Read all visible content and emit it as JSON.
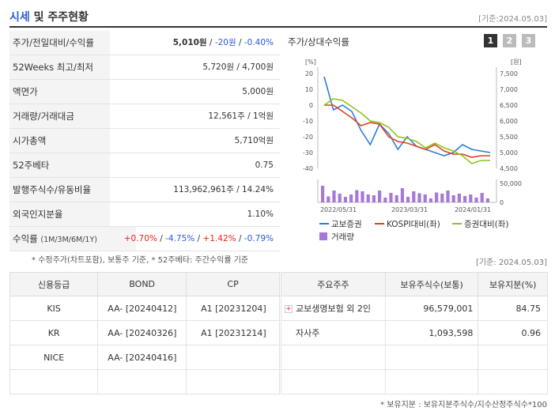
{
  "header": {
    "title_blue": "시세",
    "title_rest": " 및 주주현황",
    "date": "[기준:2024.05.03]"
  },
  "info_rows": [
    {
      "key": "주가/전일대비/수익률",
      "price": "5,010원",
      "change": "-20원",
      "rate": "-0.40%"
    },
    {
      "key": "52Weeks 최고/최저",
      "value": "5,720원 / 4,700원"
    },
    {
      "key": "액면가",
      "value": "5,000원"
    },
    {
      "key": "거래량/거래대금",
      "value": "12,561주 / 1억원"
    },
    {
      "key": "시가총액",
      "value": "5,710억원"
    },
    {
      "key": "52주베타",
      "value": "0.75"
    },
    {
      "key": "발행주식수/유동비율",
      "value": "113,962,961주 / 14.24%"
    },
    {
      "key": "외국인지분율",
      "value": "1.10%"
    }
  ],
  "returns": {
    "label": "수익률",
    "periods": "(1M/3M/6M/1Y)",
    "r1": "+0.70%",
    "r2": "-4.75%",
    "r3": "+1.42%",
    "r4": "-0.79%"
  },
  "note1": "* 수정주가(차트포함), 보통주 기준, * 52주베타: 주간수익률 기준",
  "chart": {
    "title": "주가/상대수익률",
    "pages": [
      "1",
      "2",
      "3"
    ],
    "left_unit": "[%]",
    "right_unit": "[원]",
    "left_ticks": [
      "20",
      "10",
      "0",
      "-10",
      "-20",
      "-30",
      "-40"
    ],
    "right_ticks": [
      "7,500",
      "7,000",
      "6,500",
      "6,000",
      "5,500",
      "5,000",
      "4,500"
    ],
    "vol_ticks": [
      "50,000",
      "0"
    ],
    "x_ticks": [
      "2022/05/31",
      "2023/03/31",
      "2024/01/31"
    ],
    "legend": {
      "s1": "교보증권",
      "s2": "KOSPI대비(좌)",
      "s3": "증권대비(좌)",
      "s4": "거래량"
    },
    "colors": {
      "s1": "#2f7be0",
      "s2": "#d9431e",
      "s3": "#8fc31f",
      "vol": "#a679d6"
    }
  },
  "chart_data": {
    "type": "line",
    "x_ticks": [
      "2022/05/31",
      "2023/03/31",
      "2024/01/31"
    ],
    "series": [
      {
        "name": "교보증권",
        "values": [
          18,
          -3,
          0,
          -4,
          -16,
          -25,
          -12,
          -18,
          -28,
          -20,
          -26,
          -28,
          -30,
          -32,
          -30,
          -25,
          -28,
          -29,
          -30
        ]
      },
      {
        "name": "KOSPI대비(좌)",
        "values": [
          0,
          0,
          -4,
          -8,
          -13,
          -11,
          -12,
          -20,
          -23,
          -24,
          -26,
          -28,
          -25,
          -29,
          -31,
          -31,
          -33,
          -32,
          -32
        ]
      },
      {
        "name": "증권대비(좌)",
        "values": [
          0,
          4,
          3,
          -1,
          -5,
          -10,
          -11,
          -14,
          -20,
          -21,
          -23,
          -27,
          -24,
          -27,
          -29,
          -32,
          -37,
          -35,
          -35
        ]
      }
    ],
    "volume": [
      42,
      15,
      30,
      22,
      14,
      20,
      31,
      28,
      20,
      18,
      30,
      12,
      24,
      18,
      36,
      14,
      28,
      23,
      20,
      10,
      25,
      22,
      30,
      18,
      22,
      16,
      20,
      12,
      24,
      10
    ],
    "ylim_left": [
      -40,
      20
    ],
    "ylim_right": [
      4500,
      7500
    ]
  },
  "date2": "[기준: 2024.05.03]",
  "credit": {
    "headers": [
      "신용등급",
      "BOND",
      "CP"
    ],
    "rows": [
      [
        "KIS",
        "AA-  [20240412]",
        "A1  [20231204]"
      ],
      [
        "KR",
        "AA-  [20240326]",
        "A1  [20231214]"
      ],
      [
        "NICE",
        "AA-  [20240416]",
        ""
      ],
      [
        "",
        "",
        ""
      ]
    ]
  },
  "holders": {
    "headers": [
      "주요주주",
      "보유주식수(보통)",
      "보유지분(%)"
    ],
    "rows": [
      [
        "교보생명보험 외 2인",
        "96,579,001",
        "84.75"
      ],
      [
        "자사주",
        "1,093,598",
        "0.96"
      ],
      [
        "",
        "",
        ""
      ],
      [
        "",
        "",
        ""
      ]
    ]
  },
  "note2": "* 보유지분 : 보유지분주식수/지수산정주식수*100"
}
